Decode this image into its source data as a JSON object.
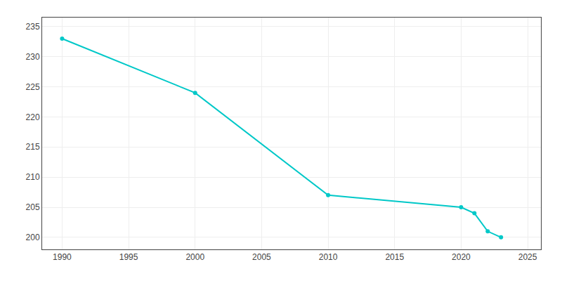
{
  "chart_data": {
    "type": "line",
    "x": [
      1990,
      2000,
      2010,
      2020,
      2021,
      2022,
      2023
    ],
    "values": [
      233,
      224,
      207,
      205,
      204,
      201,
      200
    ],
    "color": "#00c8c8",
    "marker": "circle",
    "xlim": [
      1988.5,
      2026
    ],
    "ylim": [
      198,
      236.5
    ],
    "xticks": [
      1990,
      1995,
      2000,
      2005,
      2010,
      2015,
      2020,
      2025
    ],
    "yticks": [
      200,
      205,
      210,
      215,
      220,
      225,
      230,
      235
    ],
    "grid": true
  }
}
